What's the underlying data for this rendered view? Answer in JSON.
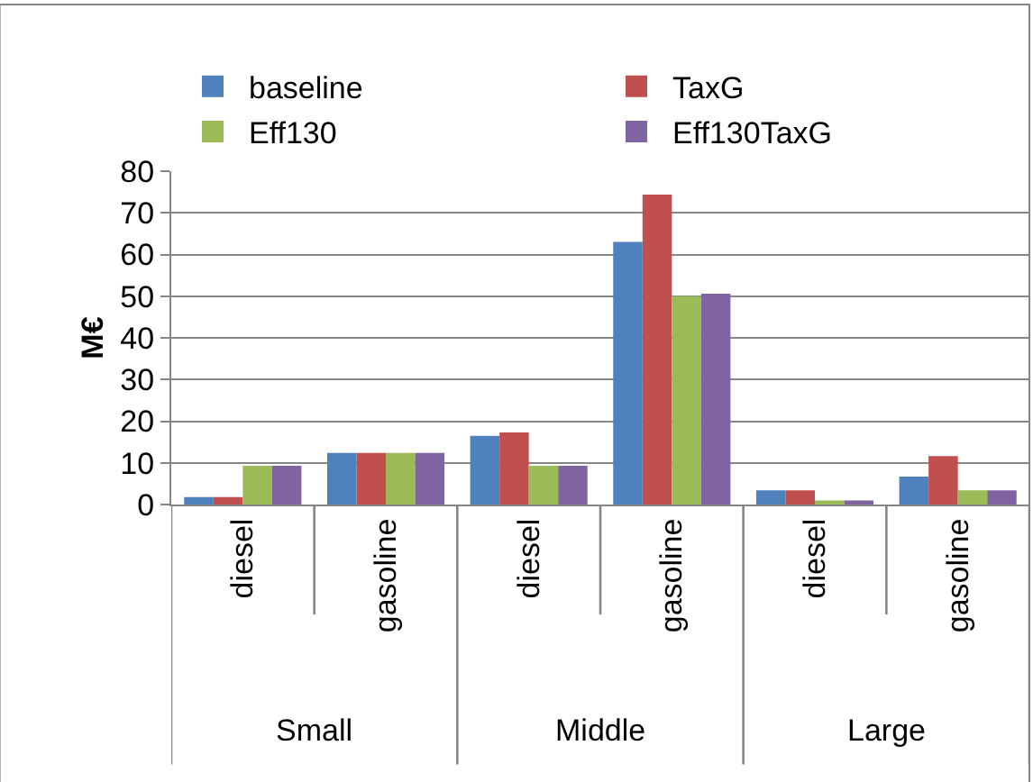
{
  "chart_data": {
    "type": "bar",
    "ylabel": "M€",
    "categories": [
      "diesel",
      "gasoline",
      "diesel",
      "gasoline",
      "diesel",
      "gasoline"
    ],
    "annotations": [
      "Small",
      "Middle",
      "Large"
    ],
    "series": [
      {
        "name": "baseline",
        "color": "#4f81bd",
        "values": [
          1.8,
          12.4,
          16.5,
          63,
          3.4,
          6.7
        ]
      },
      {
        "name": "TaxG",
        "color": "#c0504d",
        "values": [
          1.8,
          12.4,
          17.3,
          74.4,
          3.4,
          11.6
        ]
      },
      {
        "name": "Eff130",
        "color": "#9bbb59",
        "values": [
          9.3,
          12.4,
          9.3,
          50,
          1.0,
          3.4
        ]
      },
      {
        "name": "Eff130TaxG",
        "color": "#8064a2",
        "values": [
          9.3,
          12.4,
          9.3,
          50.6,
          1.0,
          3.4
        ]
      }
    ],
    "ylim": [
      0,
      80
    ],
    "yticks": [
      0,
      10,
      20,
      30,
      40,
      50,
      60,
      70,
      80
    ],
    "grid": "y",
    "legend": "top"
  }
}
